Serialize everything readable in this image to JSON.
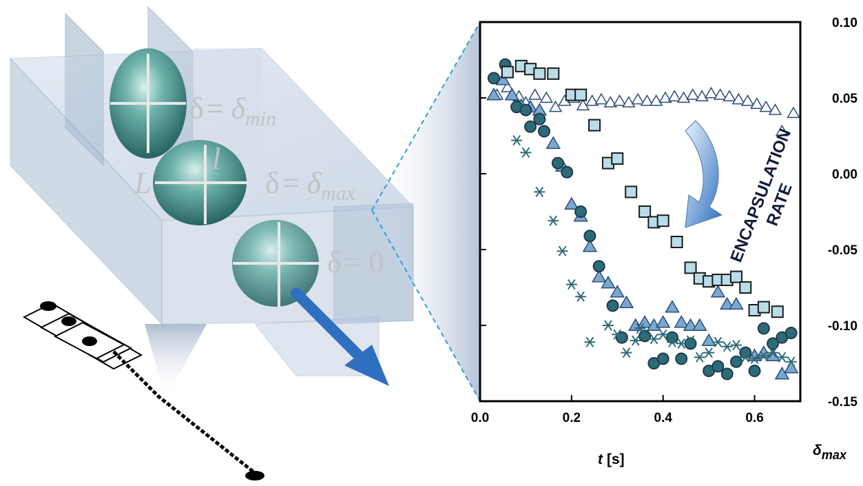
{
  "colors": {
    "circle_fill": "#2e6b78",
    "triangle_fill": "#7aa9cf",
    "square_fill": "#b9dde8",
    "star_stroke": "#2e6b78",
    "marker_edge": "#1f3a4a",
    "triangle_open_stroke": "#2b4a7a",
    "arrow_blue": "#2f6fc0",
    "channel": "#b9c8dc"
  },
  "left_panel": {
    "icons": [
      "droplet-diagram-icon",
      "microchannel-diagram-icon",
      "flow-arrow-icon"
    ],
    "equations": [
      {
        "lhs": "δ",
        "eq": "= ",
        "rhs": "δ",
        "sub": "min"
      },
      {
        "lhs": "δ",
        "eq": "= ",
        "rhs": "δ",
        "sub": "max"
      },
      {
        "lhs": "δ",
        "eq": "= ",
        "rhs": "0",
        "sub": ""
      }
    ],
    "dim_labels": {
      "L": "L",
      "l": "l"
    }
  },
  "chart_data": {
    "type": "scatter",
    "xlabel_var": "t",
    "xlabel_unit": "[s]",
    "ylabel_var": "δ",
    "ylabel_sub": "max",
    "xlim": [
      0.0,
      0.7
    ],
    "ylim": [
      -0.15,
      0.1
    ],
    "x_ticks": [
      "0.0",
      "0.2",
      "0.4",
      "0.6"
    ],
    "y_ticks": [
      "0.10",
      "0.05",
      "0.00",
      "-0.05",
      "-0.10",
      "-0.15"
    ],
    "y_axis_side": "right",
    "grid": false,
    "annotation": {
      "line1": "ENCAPSULATION",
      "line2": "RATE"
    },
    "series": [
      {
        "marker": "triangle-open",
        "points": [
          [
            0.037,
            0.052
          ],
          [
            0.06,
            0.057
          ],
          [
            0.085,
            0.051
          ],
          [
            0.1,
            0.047
          ],
          [
            0.12,
            0.052
          ],
          [
            0.145,
            0.05
          ],
          [
            0.165,
            0.044
          ],
          [
            0.185,
            0.048
          ],
          [
            0.205,
            0.05
          ],
          [
            0.225,
            0.045
          ],
          [
            0.245,
            0.048
          ],
          [
            0.265,
            0.049
          ],
          [
            0.285,
            0.047
          ],
          [
            0.305,
            0.048
          ],
          [
            0.325,
            0.047
          ],
          [
            0.345,
            0.049
          ],
          [
            0.365,
            0.048
          ],
          [
            0.385,
            0.048
          ],
          [
            0.405,
            0.05
          ],
          [
            0.425,
            0.051
          ],
          [
            0.445,
            0.05
          ],
          [
            0.465,
            0.052
          ],
          [
            0.485,
            0.051
          ],
          [
            0.505,
            0.053
          ],
          [
            0.525,
            0.052
          ],
          [
            0.545,
            0.051
          ],
          [
            0.565,
            0.049
          ],
          [
            0.585,
            0.048
          ],
          [
            0.605,
            0.046
          ],
          [
            0.625,
            0.044
          ],
          [
            0.645,
            0.042
          ],
          [
            0.66,
            0.028
          ],
          [
            0.685,
            0.04
          ]
        ]
      },
      {
        "marker": "triangle-filled",
        "points": [
          [
            0.03,
            0.052
          ],
          [
            0.05,
            0.062
          ],
          [
            0.07,
            0.052
          ],
          [
            0.09,
            0.045
          ],
          [
            0.11,
            0.044
          ],
          [
            0.13,
            0.042
          ],
          [
            0.16,
            0.02
          ],
          [
            0.18,
            0.005
          ],
          [
            0.2,
            -0.02
          ],
          [
            0.22,
            -0.028
          ],
          [
            0.24,
            -0.048
          ],
          [
            0.26,
            -0.068
          ],
          [
            0.28,
            -0.072
          ],
          [
            0.3,
            -0.078
          ],
          [
            0.32,
            -0.085
          ],
          [
            0.34,
            -0.1
          ],
          [
            0.36,
            -0.098
          ],
          [
            0.38,
            -0.1
          ],
          [
            0.4,
            -0.098
          ],
          [
            0.42,
            -0.088
          ],
          [
            0.44,
            -0.098
          ],
          [
            0.46,
            -0.1
          ],
          [
            0.48,
            -0.1
          ],
          [
            0.5,
            -0.11
          ],
          [
            0.52,
            -0.078
          ],
          [
            0.54,
            -0.086
          ],
          [
            0.56,
            -0.086
          ],
          [
            0.6,
            -0.12
          ],
          [
            0.62,
            -0.118
          ],
          [
            0.64,
            -0.12
          ],
          [
            0.66,
            -0.132
          ],
          [
            0.68,
            -0.128
          ]
        ]
      },
      {
        "marker": "circle",
        "points": [
          [
            0.03,
            0.063
          ],
          [
            0.055,
            0.072
          ],
          [
            0.08,
            0.044
          ],
          [
            0.1,
            0.042
          ],
          [
            0.11,
            0.031
          ],
          [
            0.13,
            0.036
          ],
          [
            0.14,
            0.028
          ],
          [
            0.17,
            0.007
          ],
          [
            0.19,
            0.001
          ],
          [
            0.22,
            -0.025
          ],
          [
            0.24,
            -0.041
          ],
          [
            0.26,
            -0.061
          ],
          [
            0.29,
            -0.087
          ],
          [
            0.31,
            -0.108
          ],
          [
            0.36,
            -0.107
          ],
          [
            0.38,
            -0.125
          ],
          [
            0.4,
            -0.122
          ],
          [
            0.42,
            -0.108
          ],
          [
            0.44,
            -0.122
          ],
          [
            0.46,
            -0.112
          ],
          [
            0.5,
            -0.13
          ],
          [
            0.52,
            -0.127
          ],
          [
            0.54,
            -0.132
          ],
          [
            0.56,
            -0.124
          ],
          [
            0.58,
            -0.118
          ],
          [
            0.6,
            -0.13
          ],
          [
            0.62,
            -0.102
          ],
          [
            0.64,
            -0.112
          ],
          [
            0.66,
            -0.108
          ],
          [
            0.68,
            -0.105
          ]
        ]
      },
      {
        "marker": "square",
        "points": [
          [
            0.06,
            0.067
          ],
          [
            0.09,
            0.071
          ],
          [
            0.11,
            0.069
          ],
          [
            0.13,
            0.066
          ],
          [
            0.16,
            0.066
          ],
          [
            0.2,
            0.052
          ],
          [
            0.22,
            0.052
          ],
          [
            0.25,
            0.032
          ],
          [
            0.28,
            0.007
          ],
          [
            0.3,
            0.01
          ],
          [
            0.33,
            -0.012
          ],
          [
            0.36,
            -0.025
          ],
          [
            0.38,
            -0.032
          ],
          [
            0.4,
            -0.031
          ],
          [
            0.43,
            -0.045
          ],
          [
            0.46,
            -0.062
          ],
          [
            0.48,
            -0.069
          ],
          [
            0.5,
            -0.071
          ],
          [
            0.52,
            -0.07
          ],
          [
            0.54,
            -0.07
          ],
          [
            0.56,
            -0.068
          ],
          [
            0.58,
            -0.075
          ],
          [
            0.6,
            -0.09
          ],
          [
            0.62,
            -0.088
          ],
          [
            0.65,
            -0.091
          ]
        ]
      },
      {
        "marker": "star",
        "points": [
          [
            0.08,
            0.022
          ],
          [
            0.1,
            0.014
          ],
          [
            0.13,
            -0.012
          ],
          [
            0.16,
            -0.031
          ],
          [
            0.18,
            -0.051
          ],
          [
            0.2,
            -0.073
          ],
          [
            0.22,
            -0.081
          ],
          [
            0.24,
            -0.111
          ],
          [
            0.28,
            -0.1
          ],
          [
            0.3,
            -0.106
          ],
          [
            0.32,
            -0.118
          ],
          [
            0.34,
            -0.11
          ],
          [
            0.35,
            -0.102
          ],
          [
            0.38,
            -0.109
          ],
          [
            0.4,
            -0.106
          ],
          [
            0.42,
            -0.111
          ],
          [
            0.44,
            -0.112
          ],
          [
            0.46,
            -0.11
          ],
          [
            0.48,
            -0.121
          ],
          [
            0.5,
            -0.118
          ],
          [
            0.52,
            -0.111
          ],
          [
            0.54,
            -0.114
          ],
          [
            0.56,
            -0.113
          ],
          [
            0.58,
            -0.121
          ],
          [
            0.6,
            -0.122
          ],
          [
            0.62,
            -0.12
          ],
          [
            0.64,
            -0.118
          ],
          [
            0.66,
            -0.121
          ],
          [
            0.68,
            -0.124
          ]
        ]
      }
    ]
  }
}
